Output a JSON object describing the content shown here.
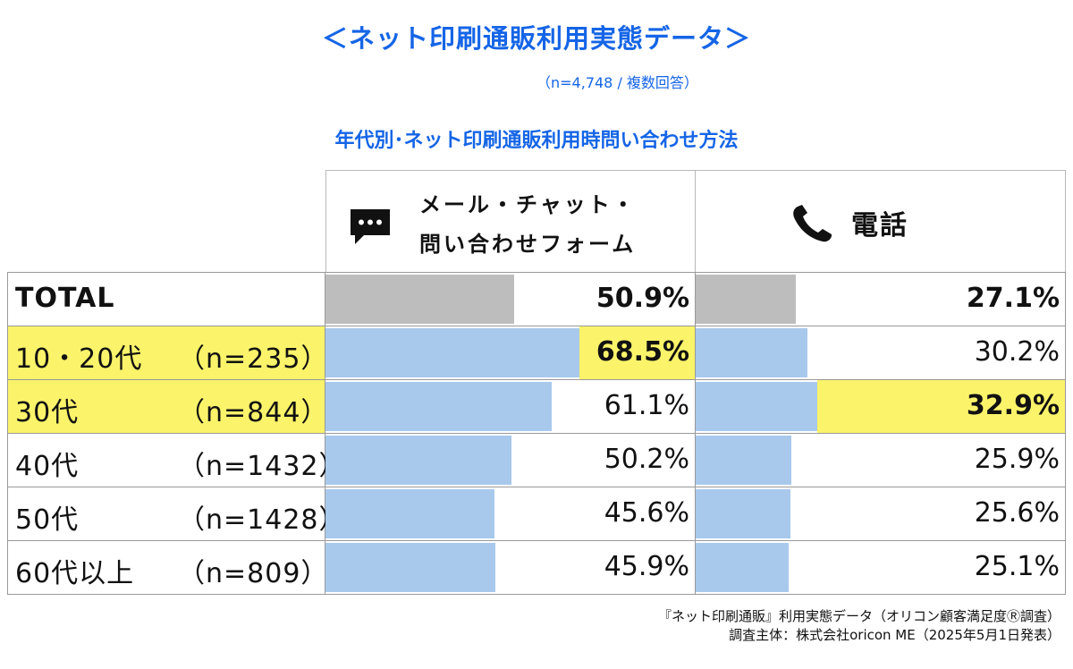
{
  "title": "＜ネット印刷通販利用実態データ＞",
  "subtitle": "（n=4,748 / 複数回答）",
  "chart_title": "年代別･ネット印刷通販利用時問い合わせ方法",
  "columns": {
    "mail": "メール・チャット・問い合わせフォーム",
    "mail_line1": "メール・チャット・",
    "mail_line2": "問い合わせフォーム",
    "phone": "電話"
  },
  "rows": [
    {
      "label": "TOTAL",
      "n": ""
    },
    {
      "label": "10・20代",
      "n": "（n=235）"
    },
    {
      "label": "30代",
      "n": "（n=844）"
    },
    {
      "label": "40代",
      "n": "（n=1432）"
    },
    {
      "label": "50代",
      "n": "（n=1428）"
    },
    {
      "label": "60代以上",
      "n": "（n=809）"
    }
  ],
  "chart_data": {
    "type": "bar",
    "categories": [
      "TOTAL",
      "10・20代",
      "30代",
      "40代",
      "50代",
      "60代以上"
    ],
    "series": [
      {
        "name": "メール・チャット・問い合わせフォーム",
        "values": [
          50.9,
          68.5,
          61.1,
          50.2,
          45.6,
          45.9
        ]
      },
      {
        "name": "電話",
        "values": [
          27.1,
          30.2,
          32.9,
          25.9,
          25.6,
          25.1
        ]
      }
    ],
    "value_labels": {
      "mail": [
        "50.9%",
        "68.5%",
        "61.1%",
        "50.2%",
        "45.6%",
        "45.9%"
      ],
      "phone": [
        "27.1%",
        "30.2%",
        "32.9%",
        "25.9%",
        "25.6%",
        "25.1%"
      ]
    },
    "highlighted": {
      "mail": [
        false,
        true,
        false,
        false,
        false,
        false
      ],
      "phone": [
        false,
        false,
        true,
        false,
        false,
        false
      ]
    },
    "highlighted_rows": [
      false,
      true,
      true,
      false,
      false,
      false
    ],
    "xlim": [
      0,
      100
    ]
  },
  "colors": {
    "title": "#1565e6",
    "bar": "#a8c9ec",
    "total_bar": "#bdbdbd",
    "highlight": "#fbf36a"
  },
  "footnote": {
    "line1": "『ネット印刷通販』利用実態データ（オリコン顧客満足度Ⓡ調査）",
    "line2": "調査主体：株式会社oricon ME（2025年5月1日発表）"
  }
}
